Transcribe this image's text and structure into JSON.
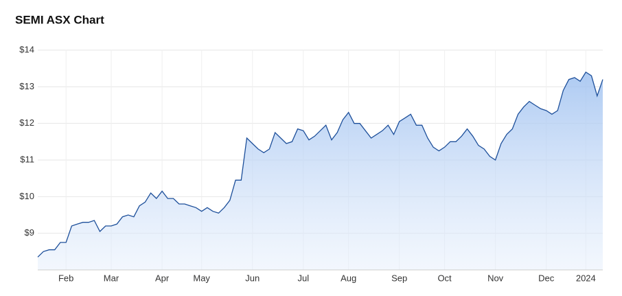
{
  "chart_data": {
    "type": "area",
    "title": "SEMI ASX Chart",
    "categories": [
      null,
      null,
      null,
      null,
      null,
      "Feb",
      null,
      null,
      null,
      null,
      null,
      null,
      null,
      "Mar",
      null,
      null,
      null,
      null,
      null,
      null,
      null,
      null,
      "Apr",
      null,
      null,
      null,
      null,
      null,
      null,
      "May",
      null,
      null,
      null,
      null,
      null,
      null,
      null,
      null,
      "Jun",
      null,
      null,
      null,
      null,
      null,
      null,
      null,
      null,
      "Jul",
      null,
      null,
      null,
      null,
      null,
      null,
      null,
      "Aug",
      null,
      null,
      null,
      null,
      null,
      null,
      null,
      null,
      "Sep",
      null,
      null,
      null,
      null,
      null,
      null,
      null,
      "Oct",
      null,
      null,
      null,
      null,
      null,
      null,
      null,
      null,
      "Nov",
      null,
      null,
      null,
      null,
      null,
      null,
      null,
      null,
      "Dec",
      null,
      null,
      null,
      null,
      null,
      null,
      "2024",
      null,
      null,
      null
    ],
    "values": [
      8.35,
      8.5,
      8.55,
      8.55,
      8.75,
      8.75,
      9.2,
      9.25,
      9.3,
      9.3,
      9.35,
      9.05,
      9.2,
      9.2,
      9.25,
      9.45,
      9.5,
      9.45,
      9.75,
      9.85,
      10.1,
      9.95,
      10.15,
      9.95,
      9.95,
      9.8,
      9.8,
      9.75,
      9.7,
      9.6,
      9.7,
      9.6,
      9.55,
      9.7,
      9.9,
      10.45,
      10.45,
      11.6,
      11.45,
      11.3,
      11.2,
      11.3,
      11.75,
      11.6,
      11.45,
      11.5,
      11.85,
      11.8,
      11.55,
      11.65,
      11.8,
      11.95,
      11.55,
      11.75,
      12.1,
      12.3,
      12.0,
      12.0,
      11.8,
      11.6,
      11.7,
      11.8,
      11.95,
      11.7,
      12.05,
      12.15,
      12.25,
      11.95,
      11.95,
      11.6,
      11.35,
      11.25,
      11.35,
      11.5,
      11.5,
      11.65,
      11.85,
      11.65,
      11.4,
      11.3,
      11.1,
      11.0,
      11.45,
      11.7,
      11.85,
      12.25,
      12.45,
      12.6,
      12.5,
      12.4,
      12.35,
      12.25,
      12.35,
      12.9,
      13.2,
      13.25,
      13.15,
      13.4,
      13.3,
      12.75,
      13.2
    ],
    "color": "#1d4f9a",
    "ylim": [
      8,
      14
    ],
    "yticks": [
      {
        "value": 9,
        "label": "$9"
      },
      {
        "value": 10,
        "label": "$10"
      },
      {
        "value": 11,
        "label": "$11"
      },
      {
        "value": 12,
        "label": "$12"
      },
      {
        "value": 13,
        "label": "$13"
      },
      {
        "value": 14,
        "label": "$14"
      }
    ],
    "grid": true
  }
}
